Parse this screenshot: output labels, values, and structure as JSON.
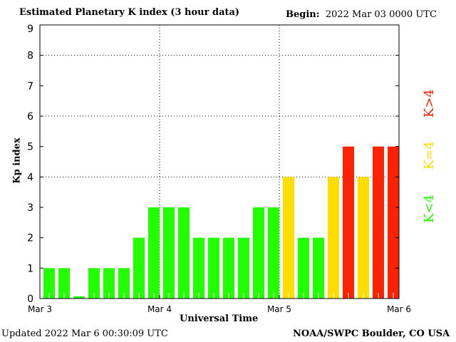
{
  "chart_data": {
    "type": "bar",
    "title": "Estimated Planetary K index (3 hour data)",
    "begin_label": "Begin:",
    "begin_value": "2022 Mar 03 0000 UTC",
    "xlabel": "Universal Time",
    "ylabel": "Kp index",
    "ylim": [
      0,
      9
    ],
    "yticks": [
      "0",
      "1",
      "2",
      "3",
      "4",
      "5",
      "6",
      "7",
      "8",
      "9"
    ],
    "xticks": [
      "Mar 3",
      "Mar 4",
      "Mar 5",
      "Mar 6"
    ],
    "grid": {
      "horizontal": [
        4,
        6,
        8
      ],
      "vertical": [
        "Mar 4",
        "Mar 5"
      ]
    },
    "interval_hours": 3,
    "values": [
      1,
      1,
      0,
      1,
      1,
      1,
      2,
      3,
      3,
      3,
      2,
      2,
      2,
      2,
      3,
      3,
      4,
      2,
      2,
      4,
      5,
      4,
      5,
      5
    ],
    "colors": {
      "below4": "#22ff00",
      "equal4": "#ffdd00",
      "above4": "#ff2200"
    },
    "legend": [
      {
        "label": "K<4",
        "color": "#22ff00"
      },
      {
        "label": "K=4",
        "color": "#ffdd00"
      },
      {
        "label": "K>4",
        "color": "#ff2200"
      }
    ]
  },
  "footer": {
    "updated": "Updated 2022 Mar  6 00:30:09 UTC",
    "credit": "NOAA/SWPC Boulder, CO USA"
  }
}
